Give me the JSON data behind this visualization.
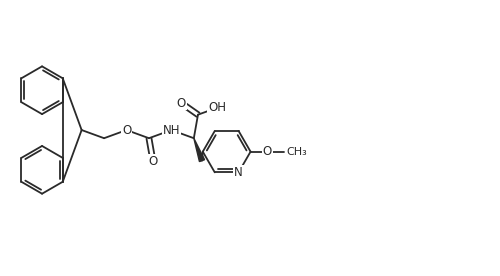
{
  "bg_color": "#ffffff",
  "line_color": "#2a2a2a",
  "line_width": 1.3,
  "font_size": 8.5,
  "fig_width": 5.0,
  "fig_height": 2.76,
  "dpi": 100,
  "xlim": [
    0,
    10
  ],
  "ylim": [
    0,
    5.52
  ]
}
